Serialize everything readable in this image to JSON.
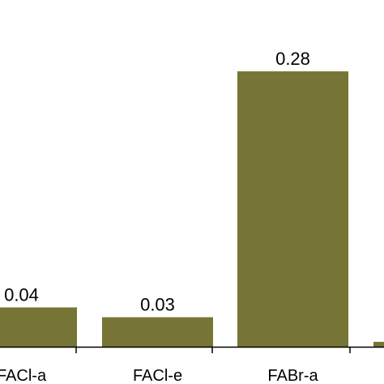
{
  "colors": {
    "bar": "#767535",
    "axis": "#000000"
  },
  "chart_data": {
    "type": "bar",
    "categories": [
      "FACl-a",
      "FACl-e",
      "FABr-a",
      ""
    ],
    "values": [
      0.04,
      0.03,
      0.28,
      0.005
    ],
    "data_labels": [
      "0.04",
      "0.03",
      "0.28",
      ""
    ],
    "title": "",
    "xlabel": "",
    "ylabel": "",
    "ylim": [
      0,
      0.3
    ],
    "grid": false,
    "legend": "none"
  }
}
